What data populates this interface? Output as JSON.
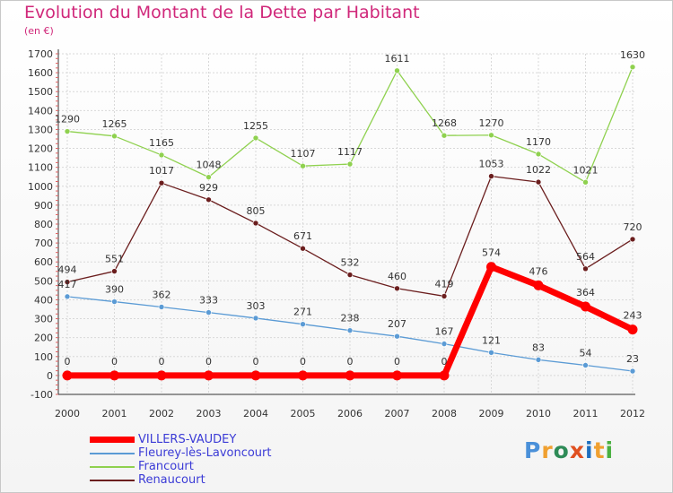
{
  "chart_data": {
    "type": "line",
    "title": "Evolution du Montant de la Dette par Habitant",
    "subtitle": "(en €)",
    "x": [
      "2000",
      "2001",
      "2002",
      "2003",
      "2004",
      "2005",
      "2006",
      "2007",
      "2008",
      "2009",
      "2010",
      "2011",
      "2012"
    ],
    "ylim": [
      -100,
      1700
    ],
    "yticks": [
      -100,
      0,
      100,
      200,
      300,
      400,
      500,
      600,
      700,
      800,
      900,
      1000,
      1100,
      1200,
      1300,
      1400,
      1500,
      1600,
      1700
    ],
    "grid": true,
    "legend_position": "bottom-left",
    "series": [
      {
        "name": "Renaucourt",
        "color": "#6b1e1e",
        "values": [
          494,
          551,
          1017,
          929,
          805,
          671,
          532,
          460,
          419,
          1053,
          1022,
          564,
          720
        ]
      },
      {
        "name": "Francourt",
        "color": "#8fd14f",
        "values": [
          1290,
          1265,
          1165,
          1048,
          1255,
          1107,
          1117,
          1611,
          1268,
          1270,
          1170,
          1021,
          1630
        ]
      },
      {
        "name": "Fleurey-lès-Lavoncourt",
        "color": "#5b9bd5",
        "values": [
          417,
          390,
          362,
          333,
          303,
          271,
          238,
          207,
          167,
          121,
          83,
          54,
          23
        ]
      },
      {
        "name": "VILLERS-VAUDEY",
        "color": "#ff0000",
        "values": [
          0,
          0,
          0,
          0,
          0,
          0,
          0,
          0,
          0,
          574,
          476,
          364,
          243
        ]
      }
    ]
  },
  "legend_order": [
    "VILLERS-VAUDEY",
    "Fleurey-lès-Lavoncourt",
    "Francourt",
    "Renaucourt"
  ],
  "logo": {
    "text": "Proxiti",
    "letters": [
      "P",
      "r",
      "o",
      "x",
      "i",
      "t",
      "i"
    ],
    "colors": [
      "#4a90d9",
      "#f0a030",
      "#2e8b57",
      "#e05020",
      "#1e6fbf",
      "#f0a030",
      "#4ab040"
    ]
  }
}
